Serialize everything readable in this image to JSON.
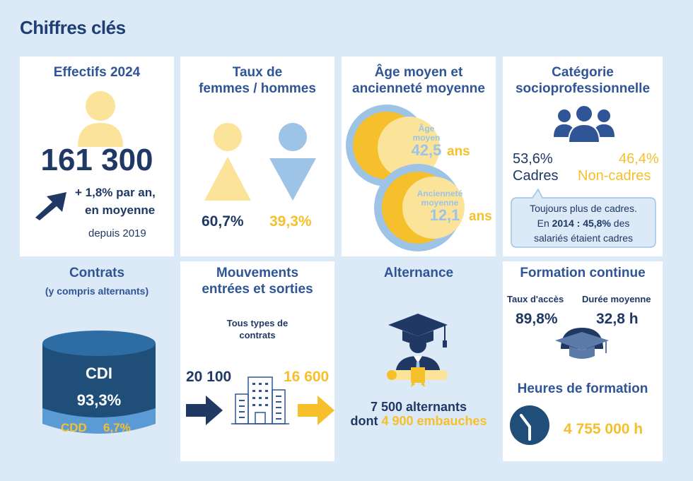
{
  "page_title": "Chiffres clés",
  "effectifs": {
    "title": "Effectifs 2024",
    "value": "161 300",
    "growth_line1": "+ 1,8% par an,",
    "growth_line2": "en moyenne",
    "since": "depuis 2019"
  },
  "taux": {
    "title_line1": "Taux de",
    "title_line2": "femmes / hommes",
    "femmes": "60,7%",
    "hommes": "39,3%"
  },
  "age": {
    "title_line1": "Âge moyen et",
    "title_line2": "ancienneté moyenne",
    "age_label_line1": "Âge",
    "age_label_line2": "moyen",
    "age_value": "42,5",
    "anc_label_line1": "Ancienneté",
    "anc_label_line2": "moyenne",
    "anc_value": "12,1",
    "unit": "ans"
  },
  "categorie": {
    "title_line1": "Catégorie",
    "title_line2": "socioprofessionnelle",
    "cadres_pct": "53,6%",
    "cadres_label": "Cadres",
    "noncadres_pct": "46,4%",
    "noncadres_label": "Non-cadres",
    "note_line1": "Toujours plus de cadres.",
    "note_line2_a": "En ",
    "note_line2_b": "2014 : 45,8%",
    "note_line2_c": " des",
    "note_line3": "salariés étaient cadres"
  },
  "contrats": {
    "title": "Contrats",
    "subtitle": "(y compris alternants)",
    "cdi_label": "CDI",
    "cdi_pct": "93,3%",
    "cdd_label": "CDD",
    "cdd_pct": "6,7%"
  },
  "mouvements": {
    "title_line1": "Mouvements",
    "title_line2": "entrées et sorties",
    "sub_line1": "Tous types de",
    "sub_line2": "contrats",
    "entrees": "20 100",
    "sorties": "16 600"
  },
  "alternance": {
    "title": "Alternance",
    "line1": "7 500 alternants",
    "line2_a": "dont ",
    "line2_b": "4 900 embauches"
  },
  "formation": {
    "title": "Formation continue",
    "acces_label": "Taux d'accès",
    "duree_label": "Durée moyenne",
    "acces_value": "89,8%",
    "duree_value": "32,8 h",
    "heures_title": "Heures de formation",
    "heures_value": "4 755 000 h"
  },
  "colors": {
    "navy": "#1f3864",
    "blue": "#2f5597",
    "yellow": "#f5c02c",
    "light_yellow": "#fbe499",
    "light_blue": "#9dc3e6",
    "background": "#dce9f7"
  }
}
